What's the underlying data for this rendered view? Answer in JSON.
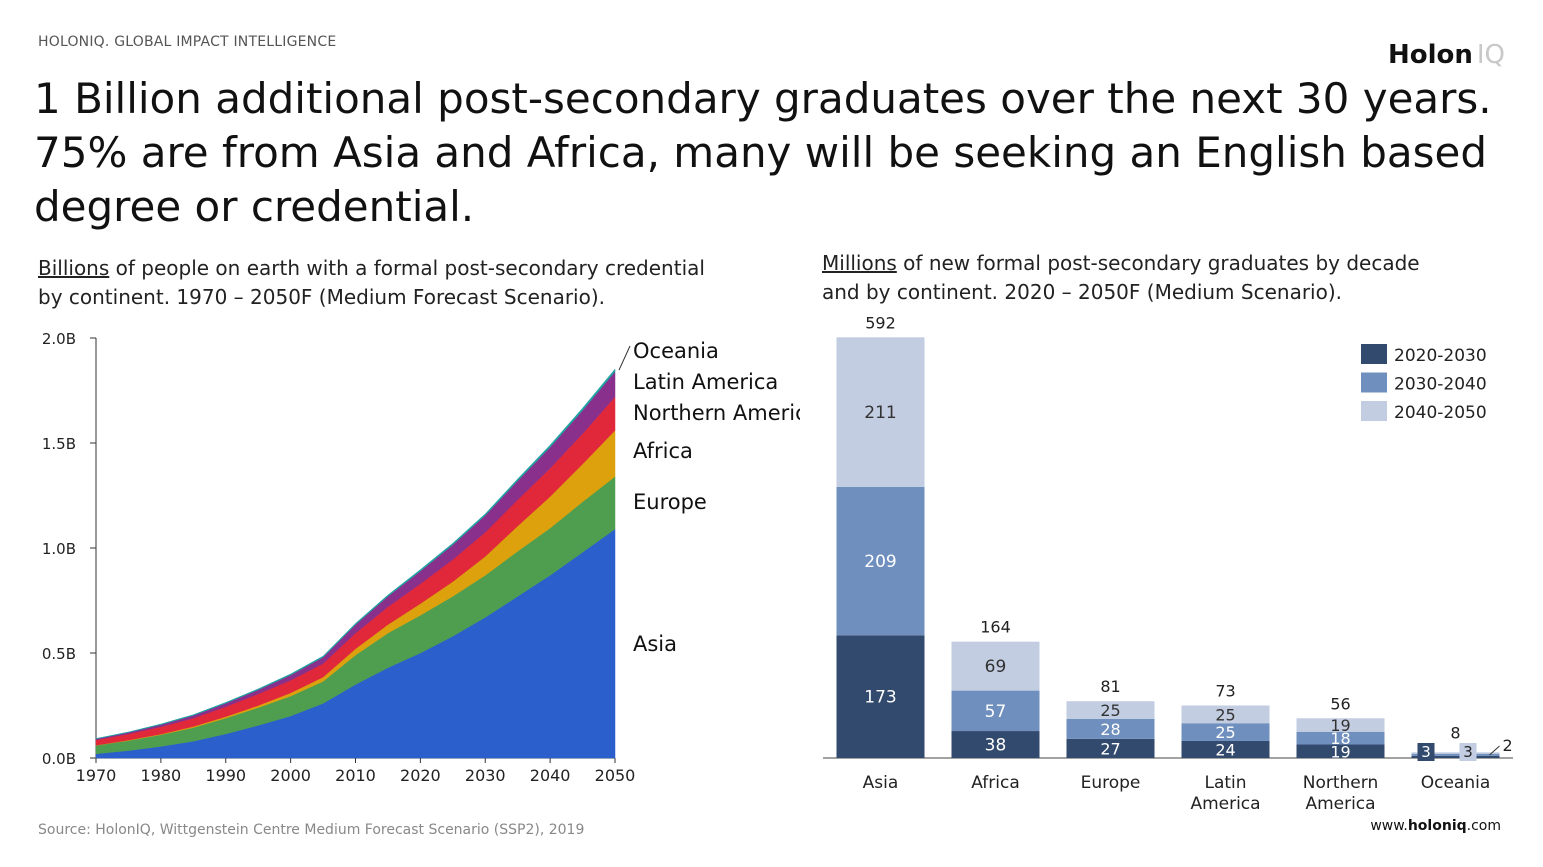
{
  "header": {
    "kicker": "HOLONIQ. GLOBAL IMPACT INTELLIGENCE",
    "logo_main": "Holon",
    "logo_suffix": "IQ",
    "headline_lines": [
      "1 Billion additional post-secondary graduates over the next 30 years.",
      "75% are from Asia and Africa, many will be seeking an English based",
      "degree or credential."
    ]
  },
  "left_subtitle": {
    "unit": "Billions",
    "line1_rest": " of people on earth with a formal post-secondary credential",
    "line2": "by continent. 1970 – 2050F (Medium Forecast Scenario)."
  },
  "right_subtitle": {
    "unit": "Millions",
    "line1_rest": " of new formal post-secondary graduates by decade",
    "line2": "and by continent. 2020 – 2050F (Medium Scenario)."
  },
  "footer": {
    "source": "Source: HolonIQ, Wittgenstein Centre Medium Forecast Scenario (SSP2), 2019",
    "url_prefix": "www.",
    "url_brand": "holoniq",
    "url_suffix": ".com"
  },
  "chart_data": [
    {
      "type": "area",
      "stacked": true,
      "x": [
        1970,
        1975,
        1980,
        1985,
        1990,
        1995,
        2000,
        2005,
        2010,
        2015,
        2020,
        2025,
        2030,
        2035,
        2040,
        2045,
        2050
      ],
      "xticks": [
        "1970",
        "1980",
        "1990",
        "2000",
        "2010",
        "2020",
        "2030",
        "2040",
        "2050"
      ],
      "yticks": [
        "0.0B",
        "0.5B",
        "1.0B",
        "1.5B",
        "2.0B"
      ],
      "ylim": [
        0,
        2.0
      ],
      "series": [
        {
          "name": "Asia",
          "color": "#2a5fcc",
          "values": [
            0.02,
            0.035,
            0.055,
            0.08,
            0.115,
            0.155,
            0.2,
            0.26,
            0.35,
            0.43,
            0.5,
            0.58,
            0.67,
            0.77,
            0.87,
            0.98,
            1.09
          ]
        },
        {
          "name": "Europe",
          "color": "#4f9e4f",
          "values": [
            0.04,
            0.048,
            0.056,
            0.065,
            0.075,
            0.085,
            0.095,
            0.105,
            0.14,
            0.165,
            0.18,
            0.19,
            0.2,
            0.215,
            0.225,
            0.24,
            0.25
          ]
        },
        {
          "name": "Africa",
          "color": "#dca10c",
          "values": [
            0.001,
            0.002,
            0.003,
            0.005,
            0.007,
            0.01,
            0.015,
            0.02,
            0.03,
            0.04,
            0.055,
            0.07,
            0.09,
            0.12,
            0.15,
            0.18,
            0.22
          ]
        },
        {
          "name": "Northern America",
          "color": "#e0283a",
          "values": [
            0.025,
            0.03,
            0.035,
            0.04,
            0.048,
            0.055,
            0.06,
            0.065,
            0.075,
            0.085,
            0.095,
            0.105,
            0.115,
            0.125,
            0.135,
            0.145,
            0.16
          ]
        },
        {
          "name": "Latin America",
          "color": "#88308c",
          "values": [
            0.005,
            0.007,
            0.01,
            0.013,
            0.016,
            0.02,
            0.025,
            0.03,
            0.04,
            0.05,
            0.06,
            0.07,
            0.08,
            0.09,
            0.1,
            0.11,
            0.12
          ]
        },
        {
          "name": "Oceania",
          "color": "#1fa3a3",
          "values": [
            0.002,
            0.002,
            0.003,
            0.003,
            0.004,
            0.004,
            0.005,
            0.005,
            0.006,
            0.006,
            0.007,
            0.008,
            0.008,
            0.009,
            0.01,
            0.011,
            0.012
          ]
        }
      ],
      "labels": [
        "Oceania",
        "Latin America",
        "Northern America",
        "Africa",
        "Europe",
        "Asia"
      ]
    },
    {
      "type": "bar",
      "stacked": true,
      "categories": [
        {
          "label_lines": [
            "Asia"
          ],
          "total": "592",
          "values": [
            173,
            209,
            211
          ],
          "labels": [
            "173",
            "209",
            "211"
          ]
        },
        {
          "label_lines": [
            "Africa"
          ],
          "total": "164",
          "values": [
            38,
            57,
            69
          ],
          "labels": [
            "38",
            "57",
            "69"
          ]
        },
        {
          "label_lines": [
            "Europe"
          ],
          "total": "81",
          "values": [
            27,
            28,
            25
          ],
          "labels": [
            "27",
            "28",
            "25"
          ]
        },
        {
          "label_lines": [
            "Latin",
            "America"
          ],
          "total": "73",
          "values": [
            24,
            25,
            25
          ],
          "labels": [
            "24",
            "25",
            "25"
          ]
        },
        {
          "label_lines": [
            "Northern",
            "America"
          ],
          "total": "56",
          "values": [
            19,
            18,
            19
          ],
          "labels": [
            "19",
            "18",
            "19"
          ]
        },
        {
          "label_lines": [
            "Oceania"
          ],
          "total": "8",
          "values": [
            3,
            3,
            2
          ],
          "labels": [
            "3",
            "3",
            "2"
          ]
        }
      ],
      "legend": [
        {
          "name": "2020-2030",
          "color": "#324a6d"
        },
        {
          "name": "2030-2040",
          "color": "#6f8fbe"
        },
        {
          "name": "2040-2050",
          "color": "#c2cde1"
        }
      ],
      "legend_position": "top-right"
    }
  ]
}
